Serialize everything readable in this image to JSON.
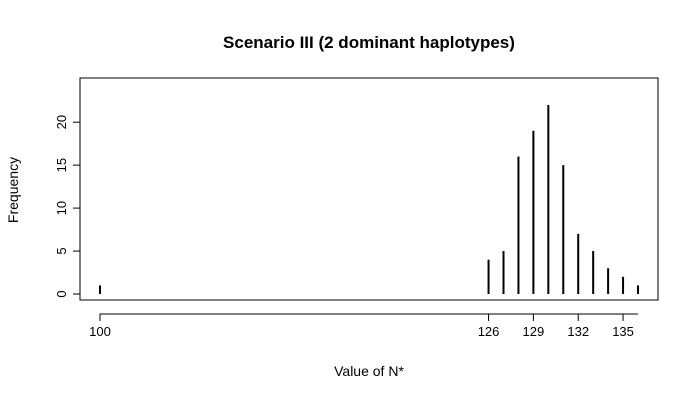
{
  "chart_data": {
    "type": "bar",
    "title": "Scenario III (2 dominant haplotypes)",
    "xlabel": "Value of N*",
    "ylabel": "Frequency",
    "x": [
      100,
      126,
      127,
      128,
      129,
      130,
      131,
      132,
      133,
      134,
      135,
      136
    ],
    "values": [
      1,
      4,
      5,
      16,
      19,
      22,
      15,
      7,
      5,
      3,
      2,
      1
    ],
    "xlim": [
      100,
      136
    ],
    "ylim": [
      0,
      22
    ],
    "xticks": [
      100,
      126,
      129,
      132,
      135
    ],
    "yticks": [
      0,
      5,
      10,
      15,
      20
    ],
    "grid": false,
    "legend": "none",
    "bar_color": "#000000"
  }
}
